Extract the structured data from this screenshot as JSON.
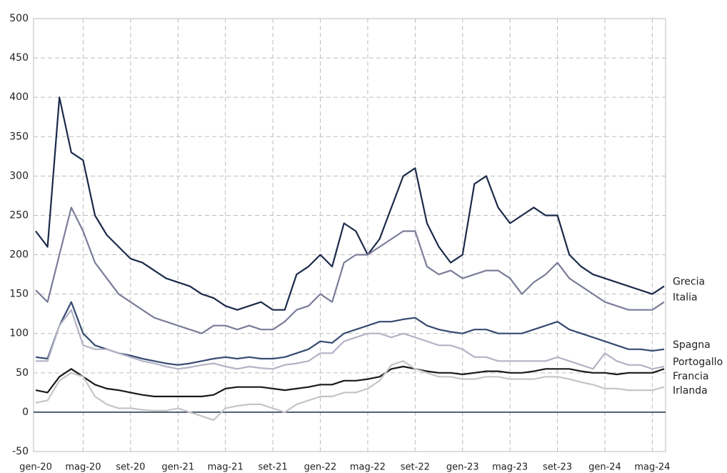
{
  "chart_data": {
    "type": "line",
    "categories": [
      "gen-20",
      null,
      null,
      null,
      "mag-20",
      null,
      null,
      null,
      "set-20",
      null,
      null,
      null,
      "gen-21",
      null,
      null,
      null,
      "mag-21",
      null,
      null,
      null,
      "set-21",
      null,
      null,
      null,
      "gen-22",
      null,
      null,
      null,
      "mag-22",
      null,
      null,
      null,
      "set-22",
      null,
      null,
      null,
      "gen-23",
      null,
      null,
      null,
      "mag-23",
      null,
      null,
      null,
      "set-23",
      null,
      null,
      null,
      "gen-24",
      null,
      null,
      null,
      "mag-24",
      null
    ],
    "series": [
      {
        "name": "Grecia",
        "color": "#1b2a4a",
        "values": [
          230,
          210,
          400,
          330,
          320,
          250,
          225,
          210,
          195,
          190,
          180,
          170,
          165,
          160,
          150,
          145,
          135,
          130,
          135,
          140,
          130,
          130,
          175,
          185,
          200,
          185,
          240,
          230,
          200,
          220,
          260,
          300,
          310,
          240,
          210,
          190,
          200,
          290,
          300,
          260,
          240,
          250,
          260,
          250,
          250,
          200,
          185,
          175,
          170,
          165,
          160,
          155,
          150,
          160
        ]
      },
      {
        "name": "Italia",
        "color": "#7a7d99",
        "values": [
          155,
          140,
          200,
          260,
          230,
          190,
          170,
          150,
          140,
          130,
          120,
          115,
          110,
          105,
          100,
          110,
          110,
          105,
          110,
          105,
          105,
          115,
          130,
          135,
          150,
          140,
          190,
          200,
          200,
          210,
          220,
          230,
          230,
          185,
          175,
          180,
          170,
          175,
          180,
          180,
          170,
          150,
          165,
          175,
          190,
          170,
          160,
          150,
          140,
          135,
          130,
          130,
          130,
          140
        ]
      },
      {
        "name": "Spagna",
        "color": "#384a72",
        "values": [
          70,
          68,
          110,
          140,
          100,
          85,
          80,
          75,
          72,
          68,
          65,
          62,
          60,
          62,
          65,
          68,
          70,
          68,
          70,
          68,
          68,
          70,
          75,
          80,
          90,
          88,
          100,
          105,
          110,
          115,
          115,
          118,
          120,
          110,
          105,
          102,
          100,
          105,
          105,
          100,
          100,
          100,
          105,
          110,
          115,
          105,
          100,
          95,
          90,
          85,
          80,
          80,
          78,
          80
        ]
      },
      {
        "name": "Portogallo",
        "color": "#b3b3c6",
        "values": [
          65,
          65,
          110,
          130,
          85,
          80,
          80,
          75,
          70,
          65,
          62,
          58,
          55,
          57,
          60,
          62,
          58,
          55,
          58,
          56,
          55,
          60,
          62,
          65,
          75,
          75,
          90,
          95,
          100,
          100,
          95,
          100,
          95,
          90,
          85,
          85,
          80,
          70,
          70,
          65,
          65,
          65,
          65,
          65,
          70,
          65,
          60,
          55,
          75,
          65,
          60,
          60,
          55,
          58
        ]
      },
      {
        "name": "Francia",
        "color": "#1a1a1a",
        "values": [
          28,
          25,
          45,
          55,
          45,
          35,
          30,
          28,
          25,
          22,
          20,
          20,
          20,
          20,
          20,
          22,
          30,
          32,
          32,
          32,
          30,
          28,
          30,
          32,
          35,
          35,
          40,
          40,
          42,
          45,
          55,
          58,
          55,
          52,
          50,
          50,
          48,
          50,
          52,
          52,
          50,
          50,
          52,
          55,
          55,
          55,
          52,
          50,
          50,
          48,
          50,
          50,
          50,
          55
        ]
      },
      {
        "name": "Irlanda",
        "color": "#c5c5c5",
        "values": [
          12,
          15,
          40,
          50,
          45,
          20,
          10,
          5,
          5,
          3,
          2,
          2,
          5,
          0,
          -5,
          -10,
          5,
          8,
          10,
          10,
          5,
          0,
          10,
          15,
          20,
          20,
          25,
          25,
          30,
          40,
          60,
          65,
          55,
          50,
          45,
          45,
          42,
          42,
          45,
          45,
          42,
          42,
          42,
          45,
          45,
          42,
          38,
          35,
          30,
          30,
          28,
          28,
          28,
          32
        ]
      }
    ],
    "ylim": [
      -50,
      500
    ],
    "yticks": [
      -50,
      0,
      50,
      100,
      150,
      200,
      250,
      300,
      350,
      400,
      450,
      500
    ],
    "grid": true
  }
}
